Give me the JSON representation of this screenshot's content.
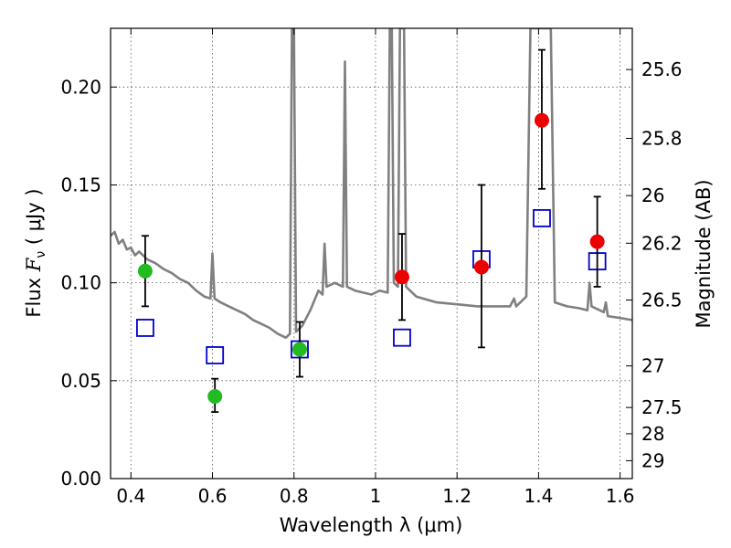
{
  "chart_data": {
    "type": "scatter",
    "xlabel": "Wavelength  λ (μm)",
    "ylabel": "Flux  F_ν  ( μJy )",
    "ylabel_parts": {
      "pre": "Flux  ",
      "var": "F",
      "sub": "ν",
      "post": "  ( μJy )"
    },
    "y2label": "Magnitude (AB)",
    "xlim": [
      0.35,
      1.63
    ],
    "ylim": [
      0.0,
      0.23
    ],
    "grid": true,
    "x_ticks": [
      {
        "value": 0.4,
        "label": "0.4"
      },
      {
        "value": 0.6,
        "label": "0.6"
      },
      {
        "value": 0.8,
        "label": "0.8"
      },
      {
        "value": 1.0,
        "label": "1"
      },
      {
        "value": 1.2,
        "label": "1.2"
      },
      {
        "value": 1.4,
        "label": "1.4"
      },
      {
        "value": 1.6,
        "label": "1.6"
      }
    ],
    "y_ticks": [
      {
        "value": 0.0,
        "label": "0.00"
      },
      {
        "value": 0.05,
        "label": "0.05"
      },
      {
        "value": 0.1,
        "label": "0.10"
      },
      {
        "value": 0.15,
        "label": "0.15"
      },
      {
        "value": 0.2,
        "label": "0.20"
      }
    ],
    "y2_ticks": [
      {
        "value": 25.6,
        "label": "25.6"
      },
      {
        "value": 25.8,
        "label": "25.8"
      },
      {
        "value": 26.0,
        "label": "26"
      },
      {
        "value": 26.2,
        "label": "26.2"
      },
      {
        "value": 26.5,
        "label": "26.5"
      },
      {
        "value": 27.0,
        "label": "27"
      },
      {
        "value": 27.5,
        "label": "27.5"
      },
      {
        "value": 28.0,
        "label": "28"
      },
      {
        "value": 29.0,
        "label": "29"
      }
    ],
    "series": [
      {
        "marker": "circle",
        "color": "#22bb22",
        "points": [
          {
            "x": 0.435,
            "y": 0.106,
            "yerr_low": 0.088,
            "yerr_high": 0.124
          },
          {
            "x": 0.606,
            "y": 0.042,
            "yerr_low": 0.034,
            "yerr_high": 0.051
          },
          {
            "x": 0.814,
            "y": 0.066,
            "yerr_low": 0.052,
            "yerr_high": 0.08
          }
        ]
      },
      {
        "marker": "circle",
        "color": "#ee0000",
        "points": [
          {
            "x": 1.065,
            "y": 0.103,
            "yerr_low": 0.081,
            "yerr_high": 0.125
          },
          {
            "x": 1.26,
            "y": 0.108,
            "yerr_low": 0.067,
            "yerr_high": 0.15
          },
          {
            "x": 1.408,
            "y": 0.183,
            "yerr_low": 0.148,
            "yerr_high": 0.219
          },
          {
            "x": 1.544,
            "y": 0.121,
            "yerr_low": 0.098,
            "yerr_high": 0.144
          }
        ]
      },
      {
        "marker": "square",
        "color": "#0000cc",
        "points": [
          {
            "x": 0.435,
            "y": 0.077
          },
          {
            "x": 0.606,
            "y": 0.063
          },
          {
            "x": 0.814,
            "y": 0.066
          },
          {
            "x": 1.065,
            "y": 0.072
          },
          {
            "x": 1.26,
            "y": 0.112
          },
          {
            "x": 1.408,
            "y": 0.133
          },
          {
            "x": 1.544,
            "y": 0.111
          }
        ]
      }
    ],
    "model_spectrum": {
      "color": "#808080",
      "points": [
        [
          0.35,
          0.124
        ],
        [
          0.36,
          0.126
        ],
        [
          0.37,
          0.12
        ],
        [
          0.38,
          0.122
        ],
        [
          0.39,
          0.117
        ],
        [
          0.4,
          0.118
        ],
        [
          0.41,
          0.114
        ],
        [
          0.42,
          0.116
        ],
        [
          0.44,
          0.112
        ],
        [
          0.46,
          0.11
        ],
        [
          0.48,
          0.107
        ],
        [
          0.5,
          0.105
        ],
        [
          0.52,
          0.102
        ],
        [
          0.54,
          0.1
        ],
        [
          0.56,
          0.096
        ],
        [
          0.58,
          0.093
        ],
        [
          0.595,
          0.092
        ],
        [
          0.6,
          0.115
        ],
        [
          0.605,
          0.092
        ],
        [
          0.62,
          0.09
        ],
        [
          0.64,
          0.088
        ],
        [
          0.66,
          0.086
        ],
        [
          0.68,
          0.084
        ],
        [
          0.7,
          0.081
        ],
        [
          0.72,
          0.079
        ],
        [
          0.74,
          0.077
        ],
        [
          0.76,
          0.074
        ],
        [
          0.78,
          0.072
        ],
        [
          0.79,
          0.074
        ],
        [
          0.795,
          0.23
        ],
        [
          0.8,
          0.23
        ],
        [
          0.805,
          0.075
        ],
        [
          0.82,
          0.078
        ],
        [
          0.84,
          0.086
        ],
        [
          0.86,
          0.096
        ],
        [
          0.87,
          0.094
        ],
        [
          0.875,
          0.12
        ],
        [
          0.88,
          0.098
        ],
        [
          0.9,
          0.1
        ],
        [
          0.92,
          0.098
        ],
        [
          0.925,
          0.213
        ],
        [
          0.93,
          0.098
        ],
        [
          0.95,
          0.096
        ],
        [
          0.97,
          0.095
        ],
        [
          0.99,
          0.094
        ],
        [
          1.01,
          0.096
        ],
        [
          1.03,
          0.095
        ],
        [
          1.035,
          0.23
        ],
        [
          1.04,
          0.23
        ],
        [
          1.045,
          0.1
        ],
        [
          1.055,
          0.098
        ],
        [
          1.06,
          0.23
        ],
        [
          1.07,
          0.23
        ],
        [
          1.075,
          0.098
        ],
        [
          1.1,
          0.093
        ],
        [
          1.15,
          0.09
        ],
        [
          1.2,
          0.089
        ],
        [
          1.25,
          0.088
        ],
        [
          1.3,
          0.088
        ],
        [
          1.33,
          0.088
        ],
        [
          1.34,
          0.092
        ],
        [
          1.345,
          0.088
        ],
        [
          1.37,
          0.093
        ],
        [
          1.38,
          0.23
        ],
        [
          1.43,
          0.23
        ],
        [
          1.44,
          0.09
        ],
        [
          1.47,
          0.088
        ],
        [
          1.5,
          0.087
        ],
        [
          1.52,
          0.086
        ],
        [
          1.525,
          0.1
        ],
        [
          1.53,
          0.088
        ],
        [
          1.56,
          0.085
        ],
        [
          1.565,
          0.09
        ],
        [
          1.57,
          0.083
        ],
        [
          1.6,
          0.082
        ],
        [
          1.63,
          0.081
        ]
      ]
    }
  }
}
